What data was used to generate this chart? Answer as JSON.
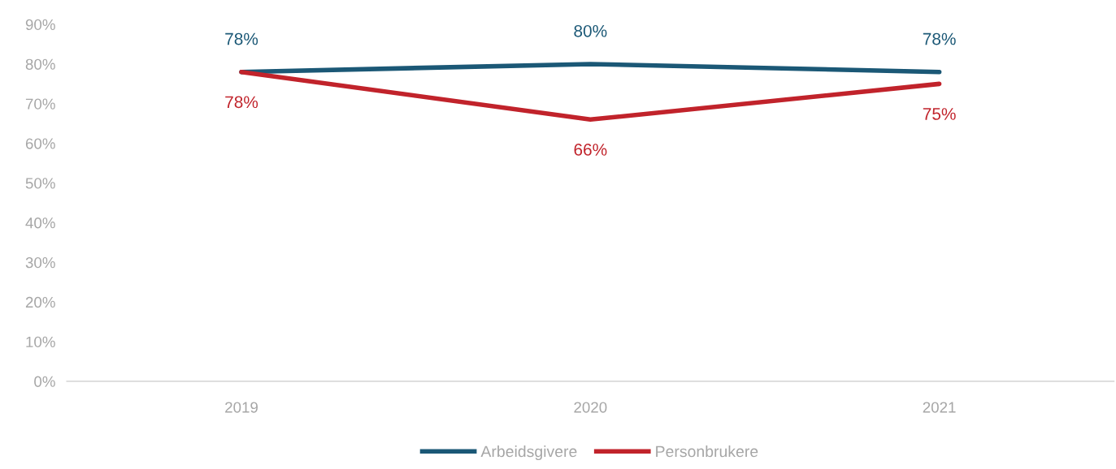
{
  "chart_data": {
    "type": "line",
    "categories": [
      "2019",
      "2020",
      "2021"
    ],
    "series": [
      {
        "name": "Arbeidsgivere",
        "color": "#1b5876",
        "values": [
          78,
          80,
          78
        ],
        "value_labels": [
          "78%",
          "80%",
          "78%"
        ]
      },
      {
        "name": "Personbrukere",
        "color": "#c1232b",
        "values": [
          78,
          66,
          75
        ],
        "value_labels": [
          "78%",
          "66%",
          "75%"
        ]
      }
    ],
    "ylim": [
      0,
      90
    ],
    "yticks": [
      {
        "value": 0,
        "label": "0%"
      },
      {
        "value": 10,
        "label": "10%"
      },
      {
        "value": 20,
        "label": "20%"
      },
      {
        "value": 30,
        "label": "30%"
      },
      {
        "value": 40,
        "label": "40%"
      },
      {
        "value": 50,
        "label": "50%"
      },
      {
        "value": 60,
        "label": "60%"
      },
      {
        "value": 70,
        "label": "70%"
      },
      {
        "value": 80,
        "label": "80%"
      },
      {
        "value": 90,
        "label": "90%"
      }
    ],
    "grid": false,
    "legend": "bottom",
    "marker": "none",
    "line_style": "solid"
  }
}
